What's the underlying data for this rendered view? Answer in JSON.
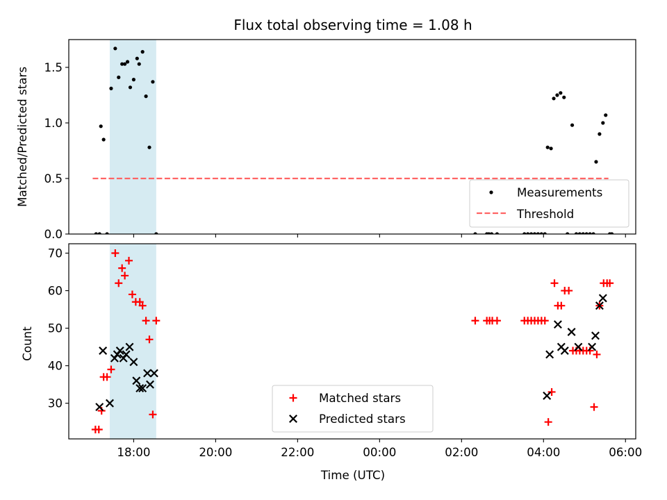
{
  "chart_data": [
    {
      "type": "scatter",
      "title": "Flux total observing time = 1.08 h",
      "ylabel": "Matched/Predicted stars",
      "xlabel": "",
      "ylim": [
        0,
        1.75
      ],
      "yticks": [
        "0.0",
        "0.5",
        "1.0",
        "1.5"
      ],
      "ytick_values": [
        0,
        0.5,
        1.0,
        1.5
      ],
      "xtick_labels_visible": false,
      "shaded_interval": {
        "start": "17:25",
        "end": "18:33",
        "color": "#add8e6"
      },
      "threshold": {
        "name": "Threshold",
        "value": 0.5,
        "x_start": "17:00",
        "x_end": "05:35",
        "color": "#ff6464",
        "style": "dashed"
      },
      "legend": {
        "placement": "lower right",
        "entries": [
          "Measurements",
          "Threshold"
        ]
      },
      "series": [
        {
          "name": "Measurements",
          "marker": "dot",
          "color": "#000000",
          "x": [
            "17:05",
            "17:10",
            "17:12",
            "17:16",
            "17:21",
            "17:27",
            "17:33",
            "17:38",
            "17:43",
            "17:47",
            "17:51",
            "17:55",
            "18:00",
            "18:05",
            "18:08",
            "18:13",
            "18:18",
            "18:23",
            "18:28",
            "18:33",
            "02:20",
            "02:37",
            "02:40",
            "02:44",
            "02:52",
            "03:32",
            "03:37",
            "03:42",
            "03:47",
            "03:52",
            "03:57",
            "04:02",
            "04:06",
            "04:11",
            "04:15",
            "04:20",
            "04:25",
            "04:30",
            "04:35",
            "04:42",
            "04:48",
            "04:53",
            "04:58",
            "05:03",
            "05:08",
            "05:13",
            "05:17",
            "05:22",
            "05:27",
            "05:31",
            "05:37",
            "05:40"
          ],
          "y": [
            0,
            0,
            0.97,
            0.85,
            0,
            1.31,
            1.67,
            1.41,
            1.53,
            1.53,
            1.55,
            1.32,
            1.39,
            1.58,
            1.53,
            1.64,
            1.24,
            0.78,
            1.37,
            0,
            0,
            0,
            0,
            0,
            0,
            0,
            0,
            0,
            0,
            0,
            0,
            0,
            0.78,
            0.77,
            1.22,
            1.25,
            1.27,
            1.23,
            0,
            0.98,
            0,
            0,
            0,
            0,
            0,
            0,
            0.65,
            0.9,
            1.0,
            1.07,
            0,
            0
          ]
        }
      ]
    },
    {
      "type": "scatter",
      "title": "",
      "xlabel": "Time (UTC)",
      "ylabel": "Count",
      "ylim": [
        20.5,
        72.5
      ],
      "yticks": [
        "30",
        "40",
        "50",
        "60",
        "70"
      ],
      "ytick_values": [
        30,
        40,
        50,
        60,
        70
      ],
      "xlim": [
        "16:25",
        "06:15"
      ],
      "xticks": [
        "18:00",
        "20:00",
        "22:00",
        "00:00",
        "02:00",
        "04:00",
        "06:00"
      ],
      "shaded_interval": {
        "start": "17:25",
        "end": "18:33",
        "color": "#add8e6"
      },
      "legend": {
        "placement": "lower center",
        "entries": [
          "Matched stars",
          "Predicted stars"
        ]
      },
      "series": [
        {
          "name": "Matched stars",
          "marker": "plus",
          "color": "#ff0000",
          "x": [
            "17:04",
            "17:09",
            "17:13",
            "17:16",
            "17:21",
            "17:27",
            "17:33",
            "17:38",
            "17:43",
            "17:47",
            "17:53",
            "17:58",
            "18:03",
            "18:09",
            "18:13",
            "18:18",
            "18:23",
            "18:28",
            "18:33",
            "02:20",
            "02:37",
            "02:41",
            "02:45",
            "02:52",
            "03:32",
            "03:37",
            "03:42",
            "03:47",
            "03:52",
            "03:57",
            "04:02",
            "04:07",
            "04:12",
            "04:16",
            "04:21",
            "04:26",
            "04:31",
            "04:37",
            "04:43",
            "04:48",
            "04:53",
            "04:58",
            "05:03",
            "05:08",
            "05:14",
            "05:18",
            "05:22",
            "05:28",
            "05:33",
            "05:37"
          ],
          "y": [
            23,
            23,
            28,
            37,
            37,
            39,
            70,
            62,
            66,
            64,
            68,
            59,
            57,
            57,
            56,
            52,
            47,
            27,
            52,
            52,
            52,
            52,
            52,
            52,
            52,
            52,
            52,
            52,
            52,
            52,
            52,
            25,
            33,
            62,
            56,
            56,
            60,
            60,
            44,
            44,
            44,
            44,
            44,
            44,
            29,
            43,
            56,
            62,
            62,
            62
          ]
        },
        {
          "name": "Predicted stars",
          "marker": "x",
          "color": "#000000",
          "x": [
            "17:10",
            "17:15",
            "17:25",
            "17:32",
            "17:36",
            "17:40",
            "17:45",
            "17:49",
            "17:54",
            "18:00",
            "18:04",
            "18:09",
            "18:13",
            "18:20",
            "18:24",
            "18:30",
            "04:05",
            "04:09",
            "04:21",
            "04:26",
            "04:31",
            "04:41",
            "04:51",
            "05:11",
            "05:16",
            "05:22",
            "05:27"
          ],
          "y": [
            29,
            44,
            30,
            42,
            43,
            44,
            42,
            43,
            45,
            41,
            36,
            34,
            34,
            38,
            35,
            38,
            32,
            43,
            51,
            45,
            44,
            49,
            45,
            45,
            48,
            56,
            58
          ]
        }
      ]
    }
  ]
}
